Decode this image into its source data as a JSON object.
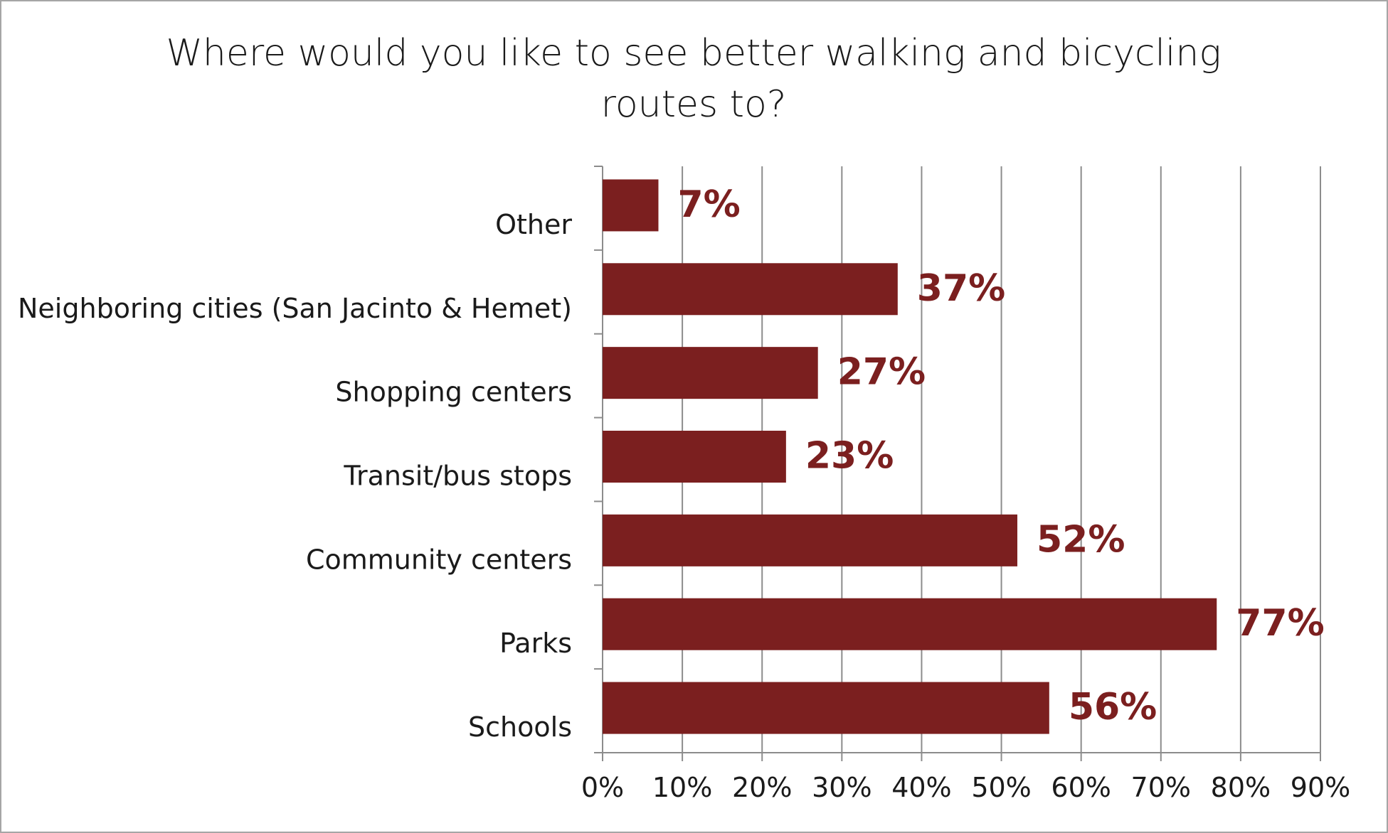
{
  "chart_data": {
    "type": "bar",
    "orientation": "horizontal",
    "title_lines": [
      "Where would you like to see better walking and bicycling",
      "routes to?"
    ],
    "categories": [
      "Other",
      "Neighboring cities (San Jacinto & Hemet)",
      "Shopping centers",
      "Transit/bus stops",
      "Community centers",
      "Parks",
      "Schools"
    ],
    "values": [
      7,
      37,
      27,
      23,
      52,
      77,
      56
    ],
    "data_labels": [
      "7%",
      "37%",
      "27%",
      "23%",
      "52%",
      "77%",
      "56%"
    ],
    "xlim": [
      0,
      90
    ],
    "xticks": [
      "0%",
      "10%",
      "20%",
      "30%",
      "40%",
      "50%",
      "60%",
      "70%",
      "80%",
      "90%"
    ],
    "xlabel": "",
    "ylabel": "",
    "grid": "vertical",
    "bar_color": "#7b1f1f",
    "gridline_color": "#8c8c8c"
  }
}
